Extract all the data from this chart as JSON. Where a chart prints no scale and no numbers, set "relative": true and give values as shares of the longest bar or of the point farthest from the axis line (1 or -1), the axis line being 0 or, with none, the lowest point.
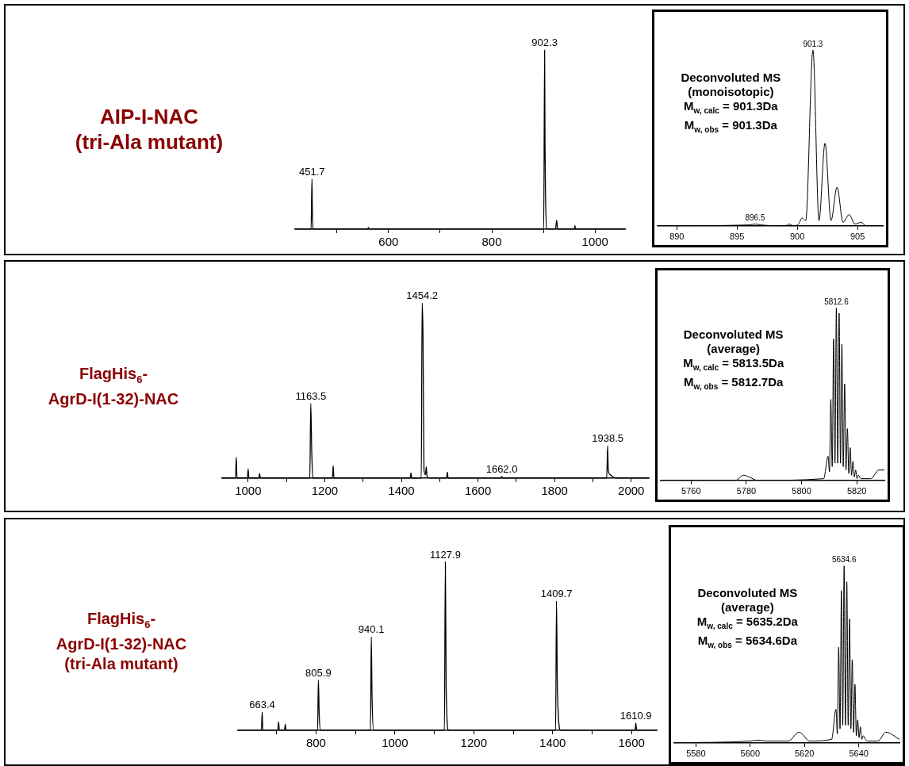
{
  "chart_data": [
    {
      "type": "other",
      "annotations": [
        "AIP-I-NAC",
        "(tri-Ala mutant)"
      ]
    },
    {
      "type": "line",
      "relative": true,
      "marker": "none",
      "xlim": [
        419,
        1058
      ],
      "xticks": [
        {
          "value": 500,
          "label": null
        },
        600,
        {
          "value": 700,
          "label": null
        },
        800,
        {
          "value": 900,
          "label": null
        },
        1000
      ],
      "grid": false,
      "series": [
        {
          "color": "#000000",
          "x": [
            419,
            450,
            451.7,
            452.5,
            454,
            560,
            561,
            562,
            900.5,
            902.3,
            903,
            904,
            906,
            923.5,
            925.5,
            927.5,
            960,
            961,
            962,
            1058
          ],
          "values": [
            0,
            0,
            0.28,
            0.1,
            0,
            0,
            0.01,
            0,
            0,
            1,
            0.49,
            0.2,
            0,
            0,
            0.05,
            0,
            0,
            0.02,
            0,
            0
          ]
        }
      ],
      "annotations": [
        {
          "text": "451.7",
          "x": 451.7,
          "y": 0.28
        },
        {
          "text": "902.3",
          "x": 902.3,
          "y": 1
        }
      ]
    },
    {
      "type": "line",
      "relative": true,
      "marker": "none",
      "xlim": [
        888.4,
        907.1
      ],
      "xticks": [
        890,
        895,
        900,
        905
      ],
      "grid": false,
      "series": [
        {
          "color": "#000000",
          "x": [
            888.4,
            896,
            896.5,
            897,
            899,
            899.3,
            899.7,
            900.1,
            900.4,
            900.7,
            901.3,
            901.8,
            902.3,
            902.8,
            903.3,
            903.8,
            904.3,
            904.8,
            905.3,
            905.7,
            907.1
          ],
          "values": [
            0,
            0.005,
            0.01,
            0.005,
            0,
            0.01,
            0,
            0.01,
            0.045,
            0.03,
            1,
            0.03,
            0.47,
            0.03,
            0.22,
            0.02,
            0.064,
            0.01,
            0.02,
            0,
            0
          ]
        }
      ],
      "annotations": [
        "Deconvoluted MS",
        "(monoisotopic)",
        "M$_{w, calc}$ = 901.3Da",
        "M$_{w, obs}$ = 901.3Da",
        {
          "text": "901.3",
          "x": 901.3,
          "y": 1
        },
        {
          "text": "896.5",
          "x": 896.5,
          "y": 0.01
        }
      ]
    },
    {
      "type": "other",
      "annotations": [
        "FlagHis$_{6}$-",
        "AgrD-I(1-32)-NAC"
      ]
    },
    {
      "type": "line",
      "relative": true,
      "marker": "none",
      "xlim": [
        932,
        2046
      ],
      "xticks": [
        1000,
        {
          "value": 1100,
          "label": null
        },
        1200,
        {
          "value": 1300,
          "label": null
        },
        1400,
        {
          "value": 1500,
          "label": null
        },
        1600,
        {
          "value": 1700,
          "label": null
        },
        1800,
        {
          "value": 1900,
          "label": null
        },
        2000
      ],
      "grid": false,
      "series": [
        {
          "color": "#000000",
          "x": [
            932,
            967,
            969,
            971,
            998,
            1000,
            1002,
            1028,
            1030,
            1032,
            1161,
            1163.5,
            1166,
            1169,
            1220,
            1222,
            1224,
            1423,
            1425,
            1427,
            1452,
            1454.2,
            1456.5,
            1459,
            1463,
            1465,
            1467,
            1475,
            1518,
            1520,
            1522,
            1660,
            1662,
            1664,
            1936,
            1938.5,
            1940,
            1945,
            1960,
            2046
          ],
          "values": [
            0,
            0,
            0.12,
            0,
            0,
            0.053,
            0,
            0,
            0.027,
            0,
            0,
            0.426,
            0.15,
            0,
            0,
            0.071,
            0,
            0,
            0.03,
            0,
            0,
            1,
            0.81,
            0.05,
            0.02,
            0.065,
            0.01,
            0,
            0,
            0.034,
            0,
            0,
            0.009,
            0,
            0,
            0.185,
            0.05,
            0.02,
            0,
            0
          ]
        }
      ],
      "annotations": [
        {
          "text": "1163.5",
          "x": 1163.5,
          "y": 0.426
        },
        {
          "text": "1454.2",
          "x": 1454.2,
          "y": 1
        },
        {
          "text": "1662.0",
          "x": 1662,
          "y": 0.009
        },
        {
          "text": "1938.5",
          "x": 1938.5,
          "y": 0.185
        }
      ]
    },
    {
      "type": "line",
      "relative": true,
      "marker": "none",
      "xlim": [
        5749,
        5830
      ],
      "xticks": [
        5760,
        5780,
        5800,
        5820
      ],
      "grid": false,
      "series": [
        {
          "color": "#000000",
          "x": [
            5749,
            5776,
            5779,
            5781,
            5784,
            5808,
            5809.6,
            5810.1,
            5810.6,
            5811.1,
            5811.6,
            5812.1,
            5812.6,
            5813.1,
            5813.6,
            5814.1,
            5814.6,
            5815.1,
            5815.6,
            5816.1,
            5816.6,
            5817.1,
            5817.6,
            5818.1,
            5818.6,
            5819.1,
            5819.6,
            5820.1,
            5820.6,
            5821.5,
            5825,
            5828,
            5830
          ],
          "values": [
            0,
            0,
            0.03,
            0.02,
            0,
            0.01,
            0.14,
            0.05,
            0.47,
            0.08,
            0.82,
            0.1,
            1,
            0.1,
            0.97,
            0.1,
            0.79,
            0.08,
            0.56,
            0.06,
            0.3,
            0.04,
            0.19,
            0.03,
            0.11,
            0.02,
            0.06,
            0.01,
            0.03,
            0.01,
            0.01,
            0.06,
            0.06
          ]
        }
      ],
      "annotations": [
        "Deconvoluted MS",
        "(average)",
        "M$_{w, calc}$ = 5813.5Da",
        "M$_{w, obs}$ = 5812.7Da",
        {
          "text": "5812.6",
          "x": 5812.6,
          "y": 1
        }
      ]
    },
    {
      "type": "other",
      "annotations": [
        "FlagHis$_{6}$-",
        "AgrD-I(1-32)-NAC",
        "(tri-Ala mutant)"
      ]
    },
    {
      "type": "line",
      "relative": true,
      "marker": "none",
      "xlim": [
        602,
        1664
      ],
      "xticks": [
        {
          "value": 700,
          "label": null
        },
        800,
        {
          "value": 900,
          "label": null
        },
        1000,
        {
          "value": 1100,
          "label": null
        },
        1200,
        {
          "value": 1300,
          "label": null
        },
        1400,
        {
          "value": 1500,
          "label": null
        },
        1600
      ],
      "grid": false,
      "series": [
        {
          "color": "#000000",
          "x": [
            602,
            661.5,
            663.4,
            665,
            703,
            705,
            707,
            720,
            722,
            724,
            804,
            805.9,
            808,
            811,
            938,
            940.1,
            942,
            946,
            1125.5,
            1127.9,
            1130,
            1136,
            1407.5,
            1409.7,
            1412,
            1420,
            1609,
            1610.9,
            1613,
            1664
          ],
          "values": [
            0,
            0,
            0.108,
            0,
            0,
            0.05,
            0,
            0,
            0.036,
            0,
            0,
            0.298,
            0.1,
            0,
            0,
            0.555,
            0.2,
            0,
            0,
            1,
            0.25,
            0,
            0,
            0.768,
            0.25,
            0,
            0,
            0.043,
            0,
            0
          ]
        }
      ],
      "annotations": [
        {
          "text": "663.4",
          "x": 663.4,
          "y": 0.108
        },
        {
          "text": "805.9",
          "x": 805.9,
          "y": 0.298
        },
        {
          "text": "940.1",
          "x": 940.1,
          "y": 0.555
        },
        {
          "text": "1127.9",
          "x": 1127.9,
          "y": 1
        },
        {
          "text": "1409.7",
          "x": 1409.7,
          "y": 0.768
        },
        {
          "text": "1610.9",
          "x": 1610.9,
          "y": 0.043
        }
      ]
    },
    {
      "type": "line",
      "relative": true,
      "marker": "none",
      "xlim": [
        5572,
        5655
      ],
      "xticks": [
        5580,
        5600,
        5620,
        5640
      ],
      "grid": false,
      "series": [
        {
          "color": "#000000",
          "x": [
            5572,
            5600,
            5603,
            5606,
            5614,
            5618,
            5622,
            5630,
            5631.6,
            5632.1,
            5632.6,
            5633.1,
            5633.6,
            5634.1,
            5634.6,
            5635.1,
            5635.6,
            5636.1,
            5636.6,
            5637.1,
            5637.6,
            5638.1,
            5638.6,
            5639.1,
            5639.6,
            5640.1,
            5640.6,
            5641.1,
            5641.6,
            5643,
            5647,
            5650,
            5655
          ],
          "values": [
            0,
            0.01,
            0.015,
            0.01,
            0.01,
            0.06,
            0.01,
            0.02,
            0.19,
            0.05,
            0.54,
            0.08,
            0.86,
            0.1,
            1,
            0.1,
            0.91,
            0.1,
            0.7,
            0.08,
            0.47,
            0.06,
            0.33,
            0.04,
            0.13,
            0.03,
            0.09,
            0.02,
            0.04,
            0.01,
            0.01,
            0.06,
            0.02
          ]
        }
      ],
      "annotations": [
        "Deconvoluted MS",
        "(average)",
        "M$_{w, calc}$ = 5635.2Da",
        "M$_{w, obs}$ = 5634.6Da",
        {
          "text": "5634.6",
          "x": 5634.6,
          "y": 1
        }
      ]
    }
  ]
}
